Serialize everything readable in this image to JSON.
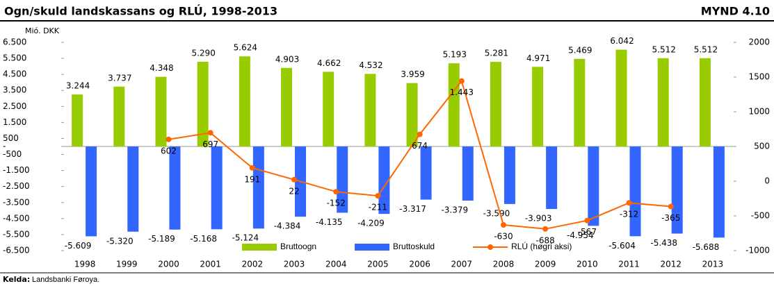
{
  "chart_data": {
    "type": "bar",
    "title": "Ogn/skuld landskassans og RLÚ, 1998-2013",
    "figure_label": "MYND 4.10",
    "y_axis_label": "Mió. DKK",
    "source_label": "Kelda:",
    "source": "Landsbanki Føroya.",
    "categories": [
      "1998",
      "1999",
      "2000",
      "2001",
      "2002",
      "2003",
      "2004",
      "2005",
      "2006",
      "2007",
      "2008",
      "2009",
      "2010",
      "2011",
      "2012",
      "2013"
    ],
    "series": [
      {
        "name": "Bruttoogn",
        "type": "bar",
        "color": "#99cc00",
        "values": [
          3244,
          3737,
          4348,
          5290,
          5624,
          4903,
          4662,
          4532,
          3959,
          5193,
          5281,
          4971,
          5469,
          6042,
          5512,
          5512
        ],
        "value_labels": [
          "3.244",
          "3.737",
          "4.348",
          "5.290",
          "5.624",
          "4.903",
          "4.662",
          "4.532",
          "3.959",
          "5.193",
          "5.281",
          "4.971",
          "5.469",
          "6.042",
          "5.512",
          "5.512"
        ]
      },
      {
        "name": "Bruttoskuld",
        "type": "bar",
        "color": "#3366ff",
        "values": [
          -5609,
          -5320,
          -5189,
          -5168,
          -5124,
          -4384,
          -4135,
          -4209,
          -3317,
          -3379,
          -3590,
          -3903,
          -4954,
          -5604,
          -5438,
          -5688
        ],
        "value_labels": [
          "-5.609",
          "-5.320",
          "-5.189",
          "-5.168",
          "-5.124",
          "-4.384",
          "-4.135",
          "-4.209",
          "-3.317",
          "-3.379",
          "-3.590",
          "-3.903",
          "-4.954",
          "-5.604",
          "-5.438",
          "-5.688"
        ]
      },
      {
        "name": "RLÚ (høgri aksi)",
        "type": "line",
        "axis": "y2",
        "color": "#ff6600",
        "values": [
          null,
          null,
          602,
          697,
          191,
          22,
          -152,
          -211,
          674,
          1443,
          -630,
          -688,
          -567,
          -312,
          -365,
          null
        ],
        "value_labels": [
          null,
          null,
          "602",
          "697",
          "191",
          "22",
          "-152",
          "-211",
          "674",
          "1.443",
          "-630",
          "-688",
          "-567",
          "-312",
          "-365",
          null
        ]
      }
    ],
    "ylim": [
      -6500,
      6500
    ],
    "yticks": [
      {
        "value": 6500,
        "label": "6.500"
      },
      {
        "value": 5500,
        "label": "5.500"
      },
      {
        "value": 4500,
        "label": "4.500"
      },
      {
        "value": 3500,
        "label": "3.500"
      },
      {
        "value": 2500,
        "label": "2.500"
      },
      {
        "value": 1500,
        "label": "1.500"
      },
      500,
      {
        "value": 0,
        "label": "-"
      },
      -500,
      {
        "value": -1500,
        "label": "-1.500"
      },
      {
        "value": -2500,
        "label": "-2.500"
      },
      {
        "value": -3500,
        "label": "-3.500"
      },
      {
        "value": -4500,
        "label": "-4.500"
      },
      {
        "value": -5500,
        "label": "-5.500"
      },
      {
        "value": -6500,
        "label": "-6.500"
      }
    ],
    "y2lim": [
      -1000,
      2000
    ],
    "y2ticks": [
      2000,
      1500,
      1000,
      500,
      0,
      -500,
      -1000
    ],
    "legend": "bottom",
    "grid": false
  }
}
